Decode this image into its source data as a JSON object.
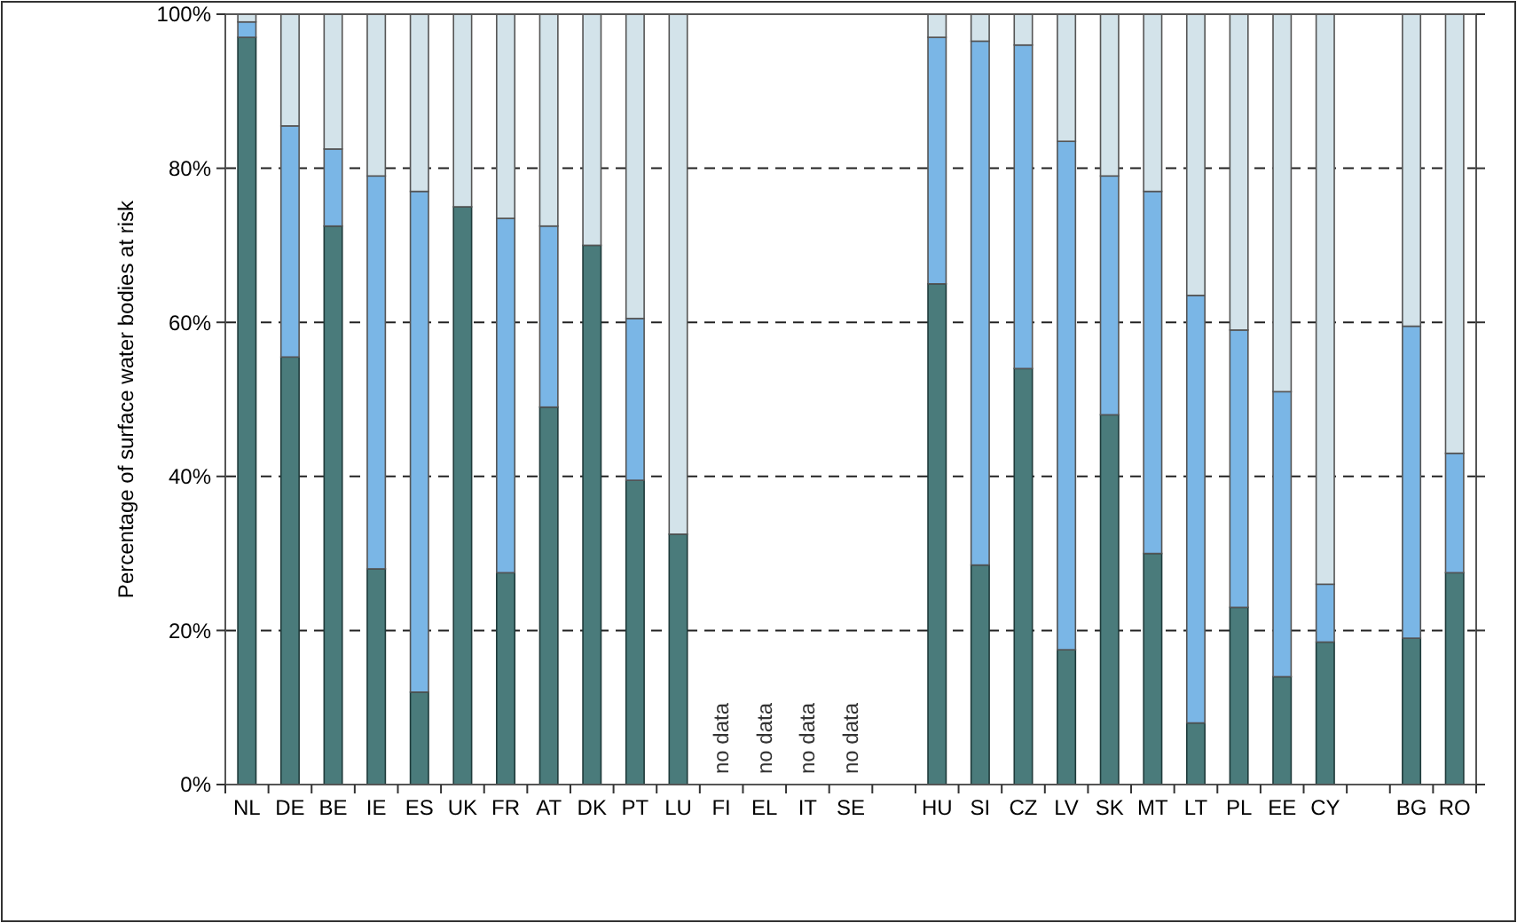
{
  "chart_data": {
    "type": "bar",
    "stacked": true,
    "ylabel": "Percentage of surface water bodies at risk",
    "categories": [
      "NL",
      "DE",
      "BE",
      "IE",
      "ES",
      "UK",
      "FR",
      "AT",
      "DK",
      "PT",
      "LU",
      "FI",
      "EL",
      "IT",
      "SE",
      null,
      "HU",
      "SI",
      "CZ",
      "LV",
      "SK",
      "MT",
      "LT",
      "PL",
      "EE",
      "CY",
      null,
      "BG",
      "RO"
    ],
    "series": [
      {
        "color": "#4a7b7b",
        "values": [
          97,
          55.5,
          72.5,
          28,
          12,
          75,
          27.5,
          49,
          70,
          39.5,
          32.5,
          null,
          null,
          null,
          null,
          null,
          65,
          28.5,
          54,
          17.5,
          48,
          30,
          8,
          23,
          14,
          18.5,
          null,
          19,
          27.5
        ]
      },
      {
        "color": "#7ab6e6",
        "values": [
          2,
          30,
          10,
          51,
          65,
          0,
          46,
          23.5,
          0,
          21,
          0,
          null,
          null,
          null,
          null,
          null,
          32,
          68,
          42,
          66,
          31,
          47,
          55.5,
          36,
          37,
          7.5,
          null,
          40.5,
          15.5
        ]
      },
      {
        "color": "#d3e3ea",
        "values": [
          1,
          14.5,
          17.5,
          21,
          23,
          25,
          26.5,
          27.5,
          30,
          39.5,
          67.5,
          null,
          null,
          null,
          null,
          null,
          3,
          3.5,
          4,
          16.5,
          21,
          23,
          36.5,
          41,
          49,
          74,
          null,
          40.5,
          57
        ]
      }
    ],
    "ylim": [
      0,
      100
    ],
    "yticks": [
      {
        "value": 0,
        "label": "0%"
      },
      {
        "value": 20,
        "label": "20%"
      },
      {
        "value": 40,
        "label": "40%"
      },
      {
        "value": 60,
        "label": "60%"
      },
      {
        "value": 80,
        "label": "80%"
      },
      {
        "value": 100,
        "label": "100%"
      }
    ],
    "grid": "y",
    "line_style": "dashed",
    "annotations": [
      "no data",
      "no data",
      "no data",
      "no data"
    ]
  }
}
